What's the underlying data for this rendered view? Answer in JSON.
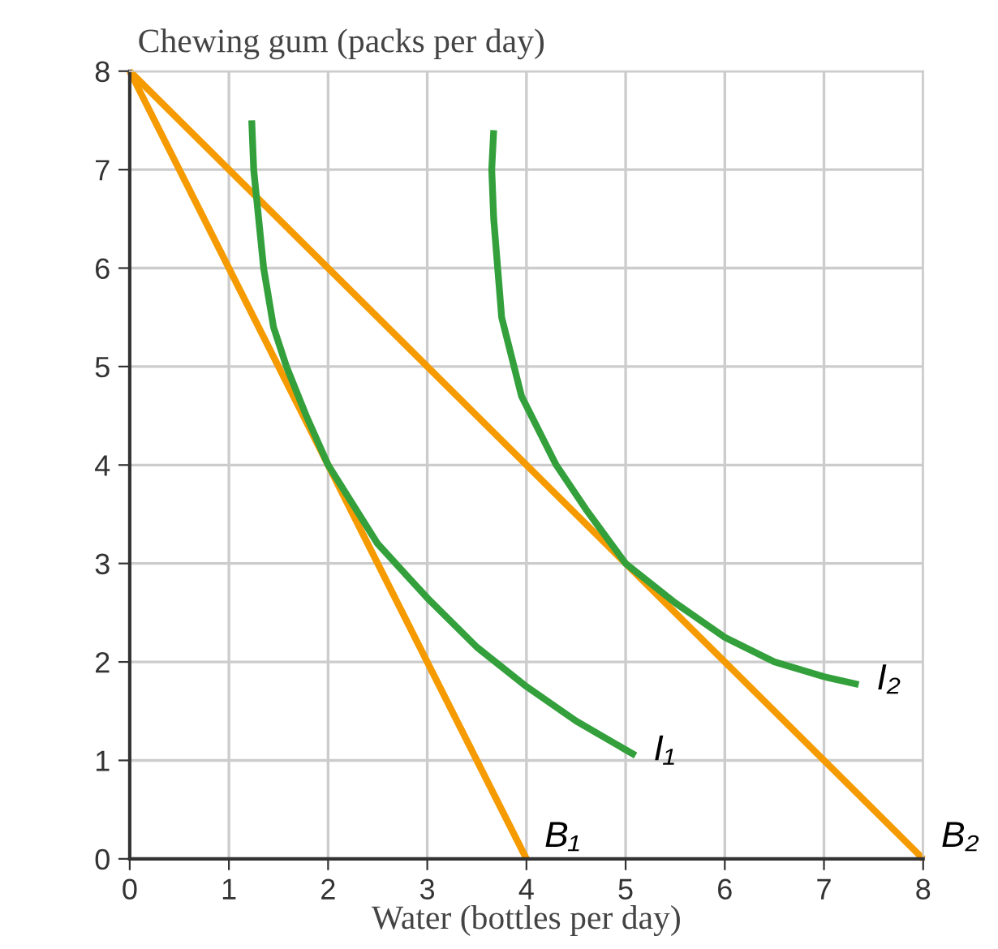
{
  "chart_data": {
    "type": "line",
    "ylabel": "Chewing gum (packs per day)",
    "xlabel": "Water (bottles per day)",
    "xlim": [
      0,
      8
    ],
    "ylim": [
      0,
      8
    ],
    "xticks": [
      0,
      1,
      2,
      3,
      4,
      5,
      6,
      7,
      8
    ],
    "yticks": [
      0,
      1,
      2,
      3,
      4,
      5,
      6,
      7,
      8
    ],
    "grid": true,
    "marker": "none",
    "line_style": "solid",
    "series": [
      {
        "name": "B₁",
        "color": "#f59b00",
        "x": [
          0,
          4
        ],
        "values": [
          8,
          0
        ]
      },
      {
        "name": "B₂",
        "color": "#f59b00",
        "x": [
          0,
          8
        ],
        "values": [
          8,
          0
        ]
      },
      {
        "name": "I₁",
        "color": "#33a03c",
        "x": [
          1.23,
          1.25,
          1.35,
          1.45,
          1.58,
          1.78,
          2,
          2.5,
          3,
          3.5,
          4,
          4.5,
          5.1
        ],
        "values": [
          7.5,
          7.0,
          6.0,
          5.4,
          5.0,
          4.5,
          4,
          3.2,
          2.65,
          2.15,
          1.75,
          1.4,
          1.05
        ]
      },
      {
        "name": "I₂",
        "color": "#33a03c",
        "x": [
          3.67,
          3.65,
          3.67,
          3.75,
          3.95,
          4.3,
          4.6,
          5,
          5.5,
          6,
          6.5,
          7,
          7.35
        ],
        "values": [
          7.4,
          7.0,
          6.5,
          5.5,
          4.7,
          4.0,
          3.55,
          3.0,
          2.6,
          2.25,
          2.0,
          1.85,
          1.77
        ]
      }
    ]
  }
}
